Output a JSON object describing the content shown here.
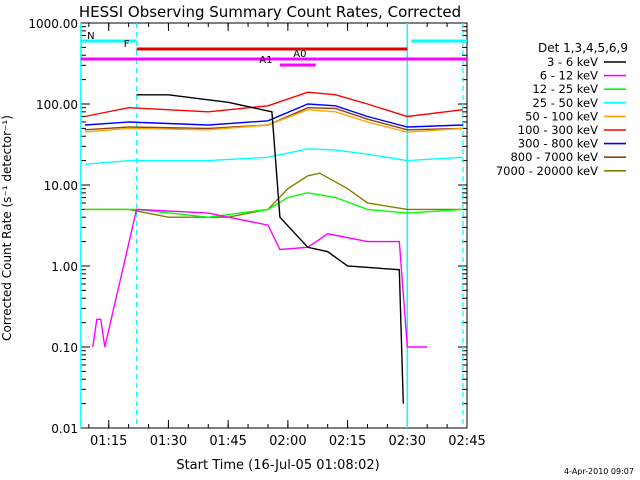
{
  "chart_data": {
    "type": "line",
    "title": "HESSI Observing Summary Count Rates, Corrected",
    "xlabel": "Start Time (16-Jul-05 01:08:02)",
    "ylabel": "Corrected Count Rate (s⁻¹ detector⁻¹)",
    "yscale": "log",
    "ylim": [
      0.01,
      1000
    ],
    "xlim": [
      "01:08:02",
      "02:45:00"
    ],
    "yticks": [
      "0.01",
      "0.10",
      "1.00",
      "10.00",
      "100.00",
      "1000.00"
    ],
    "xticks": [
      "01:15",
      "01:30",
      "01:45",
      "02:00",
      "02:15",
      "02:30",
      "02:45"
    ],
    "xtick_minutes": [
      15,
      30,
      45,
      60,
      75,
      90,
      105
    ],
    "legend_title": "Det 1,3,4,5,6,9",
    "legend_position": "right",
    "series": [
      {
        "name": "3 - 6 keV",
        "color": "#000000",
        "x": [
          "01:22",
          "01:30",
          "01:45",
          "01:56",
          "01:58",
          "02:05",
          "02:10",
          "02:15",
          "02:28",
          "02:29"
        ],
        "values": [
          130,
          130,
          105,
          80,
          4,
          1.7,
          1.5,
          1.0,
          0.9,
          0.02
        ]
      },
      {
        "name": "6 - 12 keV",
        "color": "#ff00ff",
        "x": [
          "01:11",
          "01:12",
          "01:13",
          "01:14",
          "01:22",
          "01:40",
          "01:55",
          "01:58",
          "02:05",
          "02:10",
          "02:20",
          "02:28",
          "02:30",
          "02:35"
        ],
        "values": [
          0.1,
          0.22,
          0.22,
          0.1,
          5,
          4.5,
          3.2,
          1.6,
          1.7,
          2.5,
          2.0,
          2.0,
          0.1,
          0.1
        ]
      },
      {
        "name": "12 - 25 keV",
        "color": "#00ff00",
        "x": [
          "01:09",
          "01:22",
          "01:40",
          "01:55",
          "02:00",
          "02:05",
          "02:12",
          "02:20",
          "02:30",
          "02:44"
        ],
        "values": [
          5,
          5,
          4,
          5,
          7,
          8,
          7,
          5,
          4.5,
          5
        ]
      },
      {
        "name": "25 - 50 keV",
        "color": "#00ffff",
        "x": [
          "01:09",
          "01:20",
          "01:40",
          "01:55",
          "02:05",
          "02:12",
          "02:20",
          "02:30",
          "02:44"
        ],
        "values": [
          18,
          20,
          20,
          22,
          28,
          27,
          24,
          20,
          22
        ]
      },
      {
        "name": "50 - 100 keV",
        "color": "#ffa500",
        "x": [
          "01:09",
          "01:20",
          "01:40",
          "01:55",
          "02:05",
          "02:12",
          "02:20",
          "02:30",
          "02:44"
        ],
        "values": [
          45,
          50,
          48,
          55,
          85,
          80,
          60,
          45,
          50
        ]
      },
      {
        "name": "100 - 300 keV",
        "color": "#ff0000",
        "x": [
          "01:09",
          "01:20",
          "01:40",
          "01:55",
          "02:05",
          "02:12",
          "02:20",
          "02:30",
          "02:44"
        ],
        "values": [
          70,
          90,
          80,
          95,
          140,
          130,
          100,
          70,
          85
        ]
      },
      {
        "name": "300 - 800 keV",
        "color": "#0000ff",
        "x": [
          "01:09",
          "01:20",
          "01:40",
          "01:55",
          "02:05",
          "02:12",
          "02:20",
          "02:30",
          "02:44"
        ],
        "values": [
          55,
          60,
          55,
          62,
          100,
          95,
          70,
          52,
          55
        ]
      },
      {
        "name": "800 - 7000 keV",
        "color": "#8b4513",
        "x": [
          "01:09",
          "01:20",
          "01:40",
          "01:55",
          "02:05",
          "02:12",
          "02:20",
          "02:30",
          "02:44"
        ],
        "values": [
          48,
          52,
          50,
          55,
          90,
          88,
          65,
          48,
          50
        ]
      },
      {
        "name": "7000 - 20000 keV",
        "color": "#808000",
        "x": [
          "01:09",
          "01:20",
          "01:30",
          "01:45",
          "01:55",
          "02:00",
          "02:05",
          "02:08",
          "02:15",
          "02:20",
          "02:30",
          "02:44"
        ],
        "values": [
          5,
          5,
          4,
          4,
          5,
          9,
          13,
          14,
          9,
          6,
          5,
          5
        ]
      }
    ],
    "annotations": [
      {
        "label": "N",
        "color": "#00ffff",
        "segments": [
          [
            "01:08",
            "01:22"
          ],
          [
            "02:31",
            "02:45"
          ]
        ]
      },
      {
        "label": "F",
        "color": "#e00000",
        "segments": [
          [
            "01:22",
            "02:30"
          ]
        ]
      },
      {
        "label": "A0",
        "color": "#ff00ff",
        "segments": [
          [
            "01:08",
            "02:45"
          ]
        ]
      },
      {
        "label": "A1",
        "color": "#ff00ff",
        "segments": [
          [
            "01:58",
            "02:07"
          ]
        ]
      }
    ],
    "vlines_solid": [
      "01:08",
      "02:30"
    ],
    "vlines_dashed": [
      "01:22",
      "02:44"
    ],
    "colors": {
      "night": "#00ffff",
      "flare": "#e00000",
      "attenuator": "#ff00ff"
    }
  },
  "footer": {
    "timestamp": "4-Apr-2010 09:07"
  }
}
